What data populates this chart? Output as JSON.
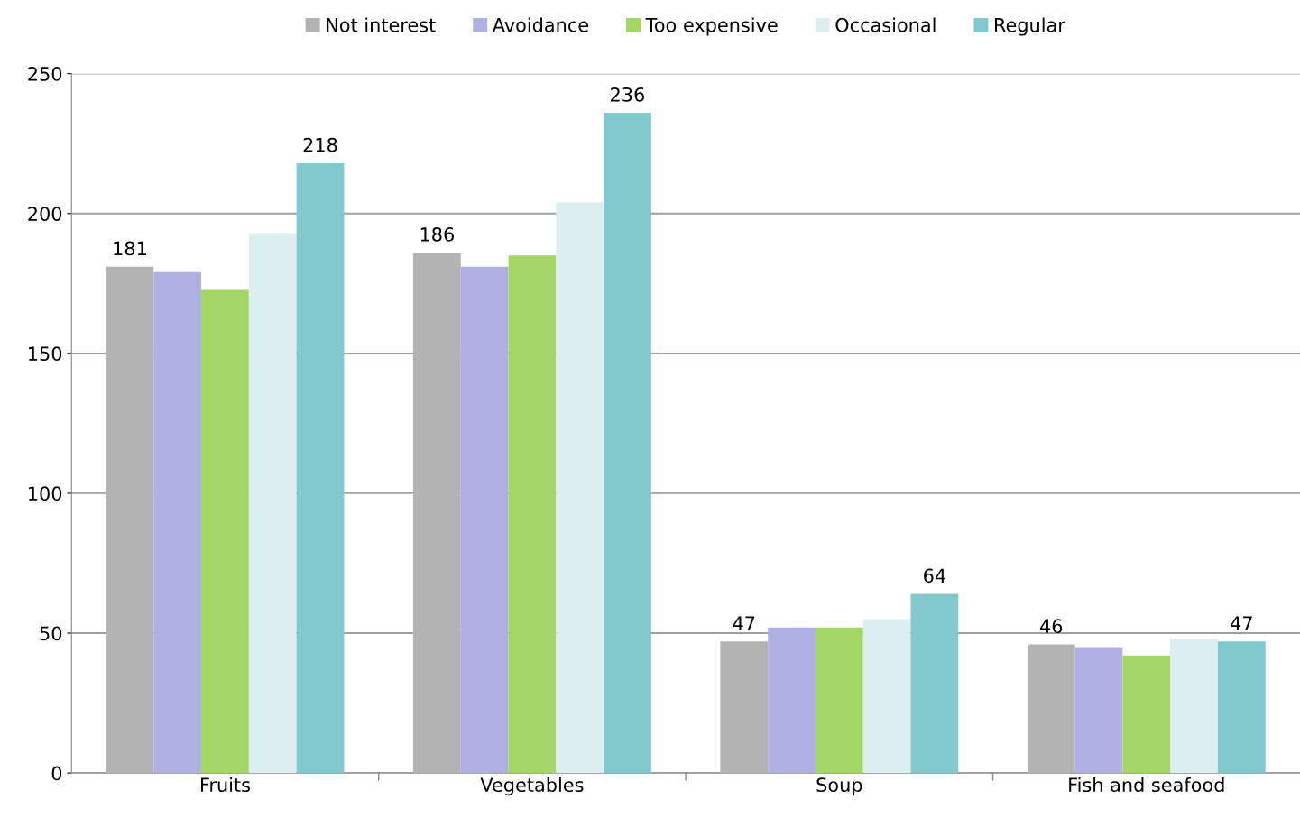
{
  "chart_data": {
    "type": "bar",
    "categories": [
      "Fruits",
      "Vegetables",
      "Soup",
      "Fish and seafood"
    ],
    "series": [
      {
        "name": "Not interest",
        "color": "#b3b3b3",
        "values": [
          181,
          186,
          47,
          46
        ],
        "value_labels": [
          "181",
          "186",
          "47",
          "46"
        ]
      },
      {
        "name": "Avoidance",
        "color": "#b0b0e2",
        "values": [
          179,
          181,
          52,
          45
        ]
      },
      {
        "name": "Too expensive",
        "color": "#a3d665",
        "values": [
          173,
          185,
          52,
          42
        ]
      },
      {
        "name": "Occasional",
        "color": "#ddeef0",
        "values": [
          193,
          204,
          55,
          48
        ]
      },
      {
        "name": "Regular",
        "color": "#82c9cd",
        "values": [
          218,
          236,
          64,
          47
        ],
        "value_labels": [
          "218",
          "236",
          "64",
          "47"
        ]
      }
    ],
    "ylim": [
      0,
      250
    ],
    "yticks": [
      0,
      50,
      100,
      150,
      200,
      250
    ],
    "grid": "y",
    "legend": "top"
  }
}
